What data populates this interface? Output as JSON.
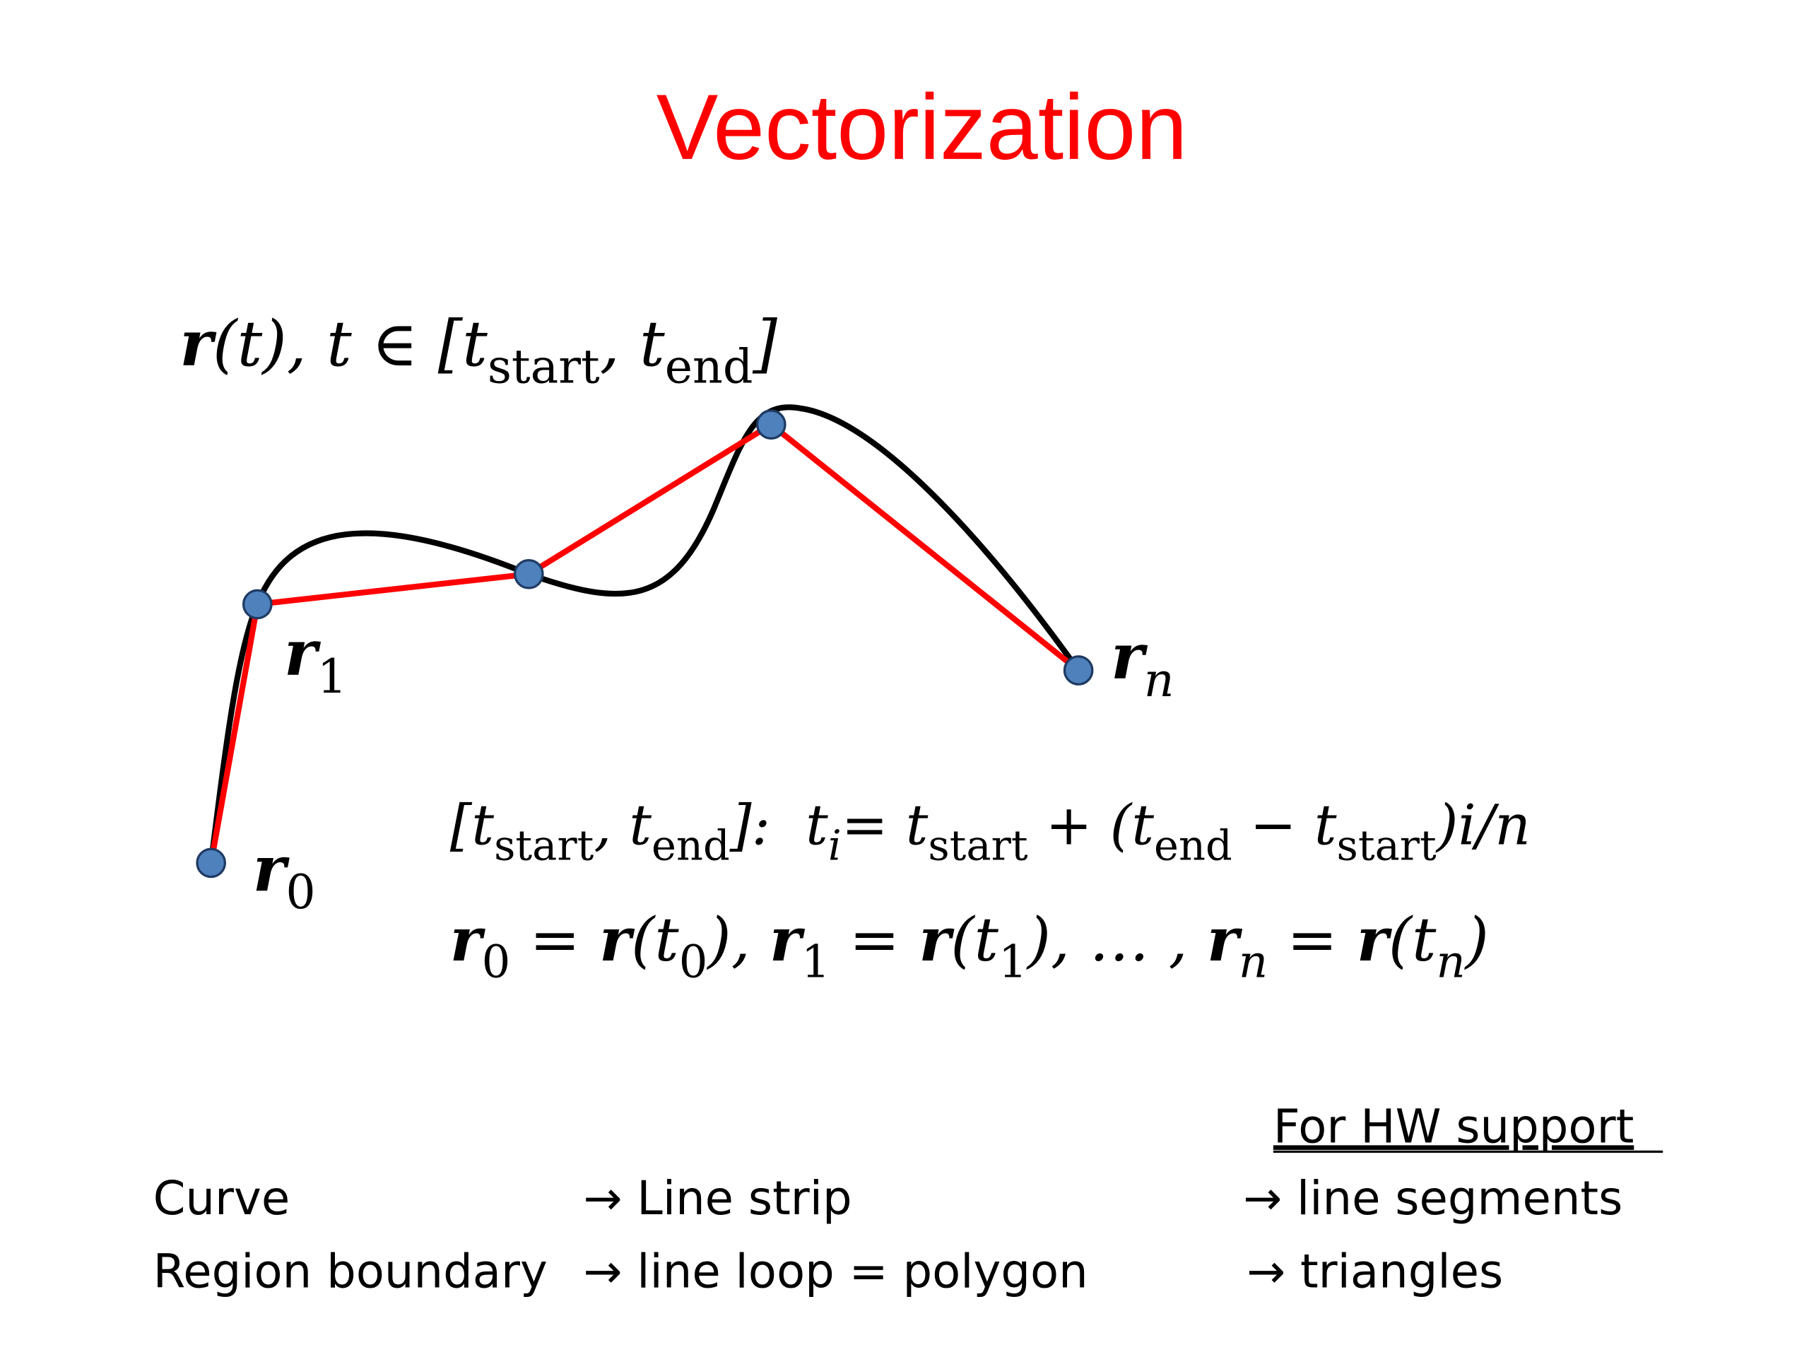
{
  "title": "Vectorization",
  "curve_formula": [
    "r",
    "(t), t ∈ [t",
    "start",
    ", t",
    "end",
    "]"
  ],
  "point_labels": {
    "r0": [
      "r",
      "0"
    ],
    "r1": [
      "r",
      "1"
    ],
    "rn": [
      "r",
      "n"
    ]
  },
  "equations": [
    [
      "[t",
      "start",
      ", t",
      "end",
      "]:  t",
      "i",
      "= t",
      "start",
      " + (t",
      "end",
      " − t",
      "start",
      ")i/n"
    ],
    [
      "r",
      "0",
      " = ",
      "r",
      "(t",
      "0",
      "), ",
      "r",
      "1",
      " = ",
      "r",
      "(t",
      "1",
      "), … , ",
      "r",
      "n",
      " = ",
      "r",
      "(t",
      "n",
      ")"
    ]
  ],
  "table": {
    "header": "For HW support",
    "rows": [
      [
        "Curve",
        "→ Line strip",
        "→ line segments"
      ],
      [
        "Region boundary",
        "→ line loop = polygon",
        "→ triangles"
      ]
    ]
  }
}
